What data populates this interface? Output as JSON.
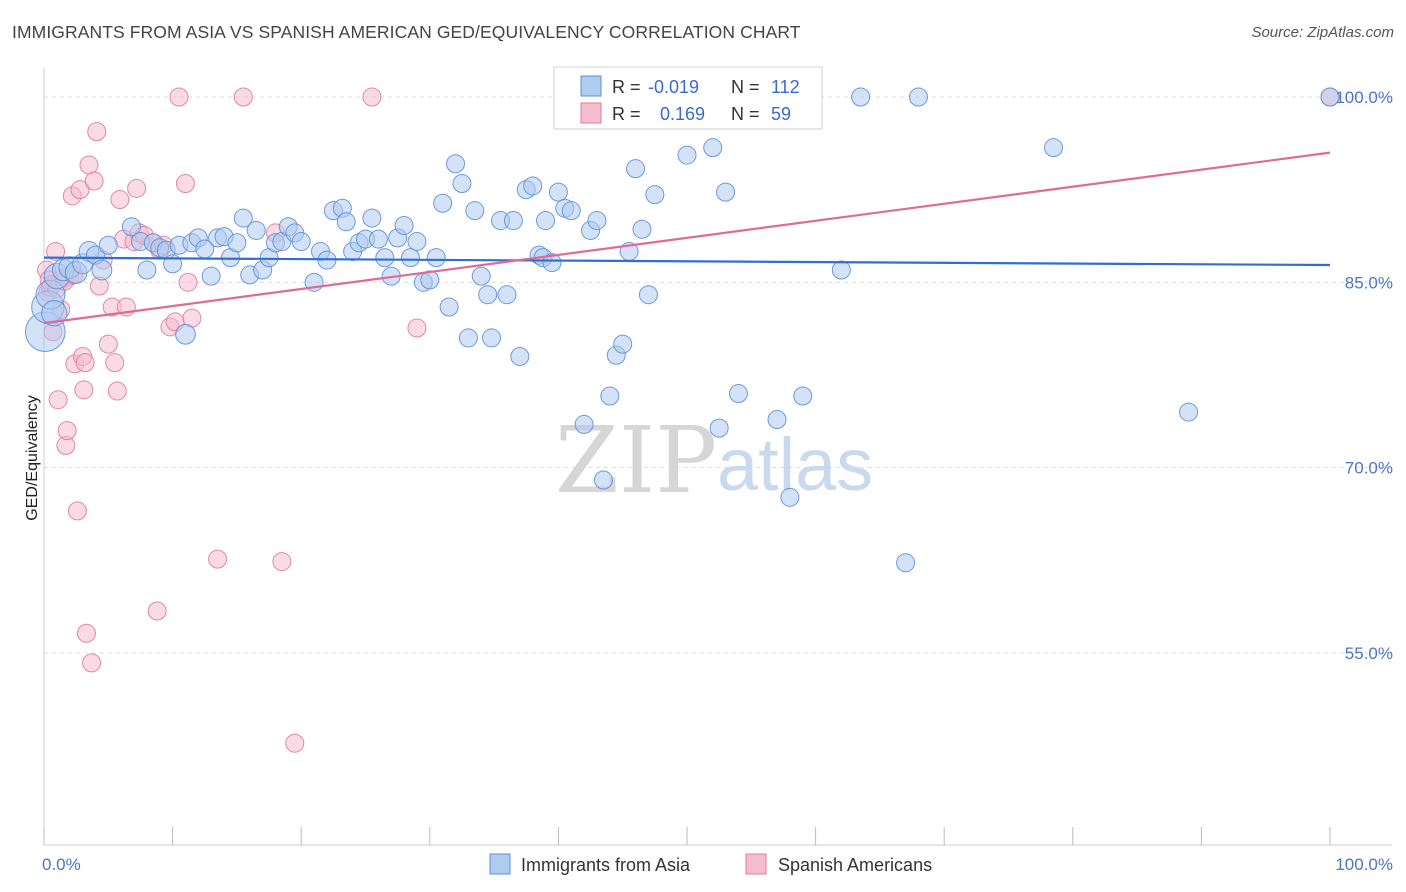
{
  "title": "IMMIGRANTS FROM ASIA VS SPANISH AMERICAN GED/EQUIVALENCY CORRELATION CHART",
  "source": "Source: ZipAtlas.com",
  "watermark": {
    "zip": "ZIP",
    "atlas": "atlas"
  },
  "legend": {
    "r_label": "R =",
    "n_label": "N =",
    "items": [
      {
        "r": "-0.019",
        "n": "112"
      },
      {
        "r": "0.169",
        "n": "59"
      }
    ]
  },
  "colors": {
    "blue_fill": "#aecbf0",
    "blue_stroke": "#5e8fd8",
    "blue_line": "#2f6fd1",
    "pink_fill": "#f6bcd0",
    "pink_stroke": "#e07ba0",
    "pink_line": "#e06a96",
    "grid": "#dddddd",
    "tick_text": "#4a76c6"
  },
  "chart_data": {
    "type": "scatter",
    "title": "IMMIGRANTS FROM ASIA VS SPANISH AMERICAN GED/EQUIVALENCY CORRELATION CHART",
    "xlabel": "",
    "ylabel": "GED/Equivalency",
    "xlim": [
      0,
      100
    ],
    "ylim": [
      40,
      101.5
    ],
    "x_tick_labels": [
      "0.0%",
      "100.0%"
    ],
    "y_ticks": [
      55,
      70,
      85,
      100
    ],
    "y_tick_labels": [
      "55.0%",
      "70.0%",
      "85.0%",
      "100.0%"
    ],
    "grid": true,
    "legend_position": "bottom",
    "series": [
      {
        "name": "Immigrants from Asia",
        "trend": [
          [
            0,
            87.0
          ],
          [
            100,
            86.4
          ]
        ],
        "points": [
          [
            0.1,
            81,
            2.2
          ],
          [
            0.3,
            83,
            1.8
          ],
          [
            0.5,
            84,
            1.6
          ],
          [
            0.8,
            82.5,
            1.4
          ],
          [
            1.0,
            85.5,
            1.4
          ],
          [
            1.5,
            86,
            1.2
          ],
          [
            2.0,
            86.2,
            1.2
          ],
          [
            2.5,
            85.8,
            1.2
          ],
          [
            3.0,
            86.5,
            1.1
          ],
          [
            3.5,
            87.5,
            1.1
          ],
          [
            4.0,
            87.2,
            1
          ],
          [
            4.5,
            86,
            1.1
          ],
          [
            5,
            88,
            1
          ],
          [
            6.8,
            89.5,
            1
          ],
          [
            7.5,
            88.3,
            1
          ],
          [
            8,
            86,
            1
          ],
          [
            8.5,
            88.2,
            1
          ],
          [
            9,
            87.8,
            1
          ],
          [
            9.5,
            87.6,
            1
          ],
          [
            10,
            86.5,
            1
          ],
          [
            10.5,
            88,
            1
          ],
          [
            11,
            80.8,
            1.1
          ],
          [
            11.5,
            88.2,
            1
          ],
          [
            12,
            88.6,
            1
          ],
          [
            12.5,
            87.7,
            1
          ],
          [
            13,
            85.5,
            1
          ],
          [
            13.5,
            88.6,
            1
          ],
          [
            14,
            88.7,
            1
          ],
          [
            14.5,
            87,
            1
          ],
          [
            15,
            88.2,
            1
          ],
          [
            15.5,
            90.2,
            1
          ],
          [
            16,
            85.6,
            1
          ],
          [
            16.5,
            89.2,
            1
          ],
          [
            17,
            86,
            1
          ],
          [
            17.5,
            87,
            1
          ],
          [
            18,
            88.2,
            1
          ],
          [
            18.5,
            88.3,
            1
          ],
          [
            19,
            89.5,
            1
          ],
          [
            19.5,
            89,
            1
          ],
          [
            20,
            88.3,
            1
          ],
          [
            21,
            85,
            1
          ],
          [
            21.5,
            87.5,
            1
          ],
          [
            22,
            86.8,
            1
          ],
          [
            22.5,
            90.8,
            1
          ],
          [
            23.2,
            91,
            1
          ],
          [
            23.5,
            89.9,
            1
          ],
          [
            24,
            87.5,
            1
          ],
          [
            24.5,
            88.2,
            1
          ],
          [
            25,
            88.5,
            1
          ],
          [
            25.5,
            90.2,
            1
          ],
          [
            26,
            88.5,
            1
          ],
          [
            26.5,
            87,
            1
          ],
          [
            27,
            85.5,
            1
          ],
          [
            27.5,
            88.6,
            1
          ],
          [
            28,
            89.6,
            1
          ],
          [
            28.5,
            87,
            1
          ],
          [
            29,
            88.3,
            1
          ],
          [
            29.5,
            85,
            1
          ],
          [
            30,
            85.2,
            1
          ],
          [
            30.5,
            87,
            1
          ],
          [
            31,
            91.4,
            1
          ],
          [
            31.5,
            83,
            1
          ],
          [
            32,
            94.6,
            1
          ],
          [
            32.5,
            93,
            1
          ],
          [
            33,
            80.5,
            1
          ],
          [
            33.5,
            90.8,
            1
          ],
          [
            34,
            85.5,
            1
          ],
          [
            34.5,
            84,
            1
          ],
          [
            34.8,
            80.5,
            1
          ],
          [
            35.5,
            90,
            1
          ],
          [
            36,
            84,
            1
          ],
          [
            36.5,
            90,
            1
          ],
          [
            37,
            79,
            1
          ],
          [
            37.5,
            92.5,
            1
          ],
          [
            38,
            92.8,
            1
          ],
          [
            38.5,
            87.2,
            1
          ],
          [
            38.8,
            87,
            1
          ],
          [
            39,
            90,
            1
          ],
          [
            39.5,
            86.6,
            1
          ],
          [
            40,
            92.3,
            1
          ],
          [
            40.5,
            91,
            1
          ],
          [
            41,
            90.8,
            1
          ],
          [
            42,
            73.5,
            1
          ],
          [
            42.5,
            89.2,
            1
          ],
          [
            43,
            90,
            1
          ],
          [
            43.5,
            69,
            1
          ],
          [
            44,
            75.8,
            1
          ],
          [
            44.5,
            79.1,
            1
          ],
          [
            45,
            80,
            1
          ],
          [
            45.5,
            87.5,
            1
          ],
          [
            46,
            94.2,
            1
          ],
          [
            46.5,
            89.3,
            1
          ],
          [
            47,
            84,
            1
          ],
          [
            47.5,
            92.1,
            1
          ],
          [
            50,
            95.3,
            1
          ],
          [
            52,
            95.9,
            1
          ],
          [
            52.5,
            73.2,
            1
          ],
          [
            53,
            92.3,
            1
          ],
          [
            54,
            76,
            1
          ],
          [
            57,
            73.9,
            1
          ],
          [
            58,
            67.6,
            1
          ],
          [
            59,
            75.8,
            1
          ],
          [
            62,
            86,
            1
          ],
          [
            63.5,
            100,
            1
          ],
          [
            67,
            62.3,
            1
          ],
          [
            68,
            100,
            1
          ],
          [
            78.5,
            95.9,
            1
          ],
          [
            89,
            74.5,
            1
          ],
          [
            100,
            100,
            1
          ]
        ]
      },
      {
        "name": "Spanish Americans",
        "trend": [
          [
            0,
            81.7
          ],
          [
            100,
            95.5
          ]
        ],
        "points": [
          [
            0.2,
            86,
            1
          ],
          [
            0.3,
            84.2,
            1
          ],
          [
            0.5,
            84.6,
            1
          ],
          [
            0.7,
            81,
            1
          ],
          [
            0.9,
            87.5,
            1
          ],
          [
            1.1,
            75.5,
            1
          ],
          [
            1.3,
            82.8,
            1
          ],
          [
            1.5,
            85.3,
            1
          ],
          [
            1.7,
            71.8,
            1
          ],
          [
            1.8,
            73,
            1
          ],
          [
            2.0,
            85.5,
            1
          ],
          [
            2.2,
            92,
            1
          ],
          [
            2.4,
            78.4,
            1
          ],
          [
            2.6,
            66.5,
            1
          ],
          [
            2.8,
            92.5,
            1
          ],
          [
            3.0,
            79,
            1
          ],
          [
            3.2,
            78.5,
            1
          ],
          [
            3.3,
            56.6,
            1
          ],
          [
            3.5,
            94.5,
            1
          ],
          [
            3.7,
            54.2,
            1
          ],
          [
            3.9,
            93.2,
            1
          ],
          [
            4.1,
            97.2,
            1
          ],
          [
            4.3,
            84.7,
            1
          ],
          [
            4.6,
            86.8,
            1
          ],
          [
            5.0,
            80,
            1
          ],
          [
            5.3,
            83,
            1
          ],
          [
            5.5,
            78.5,
            1
          ],
          [
            5.7,
            76.2,
            1
          ],
          [
            5.9,
            91.7,
            1
          ],
          [
            6.2,
            88.5,
            1
          ],
          [
            6.4,
            83,
            1
          ],
          [
            7.0,
            88.3,
            1
          ],
          [
            7.2,
            92.6,
            1
          ],
          [
            7.4,
            89,
            1
          ],
          [
            7.8,
            88.8,
            1
          ],
          [
            8.5,
            88.2,
            1
          ],
          [
            8.8,
            58.4,
            1
          ],
          [
            9.0,
            87.6,
            1
          ],
          [
            9.3,
            88,
            1
          ],
          [
            9.8,
            81.4,
            1
          ],
          [
            10.2,
            81.8,
            1
          ],
          [
            10.5,
            100,
            1
          ],
          [
            11.0,
            93,
            1
          ],
          [
            11.2,
            85,
            1
          ],
          [
            11.5,
            82.1,
            1
          ],
          [
            13.5,
            62.6,
            1
          ],
          [
            15.5,
            100,
            1
          ],
          [
            18.0,
            89,
            1
          ],
          [
            18.5,
            62.4,
            1
          ],
          [
            19.5,
            47.7,
            1
          ],
          [
            25.5,
            100,
            1
          ],
          [
            29.0,
            81.3,
            1
          ],
          [
            0.4,
            85.2,
            1
          ],
          [
            0.6,
            84.8,
            1
          ],
          [
            1.0,
            84.5,
            1
          ],
          [
            1.6,
            85.1,
            1
          ],
          [
            2.3,
            85.6,
            1
          ],
          [
            3.1,
            76.3,
            1
          ],
          [
            100,
            100,
            1
          ]
        ]
      }
    ]
  },
  "bottom_legend": {
    "items": [
      {
        "label": "Immigrants from Asia"
      },
      {
        "label": "Spanish Americans"
      }
    ]
  }
}
